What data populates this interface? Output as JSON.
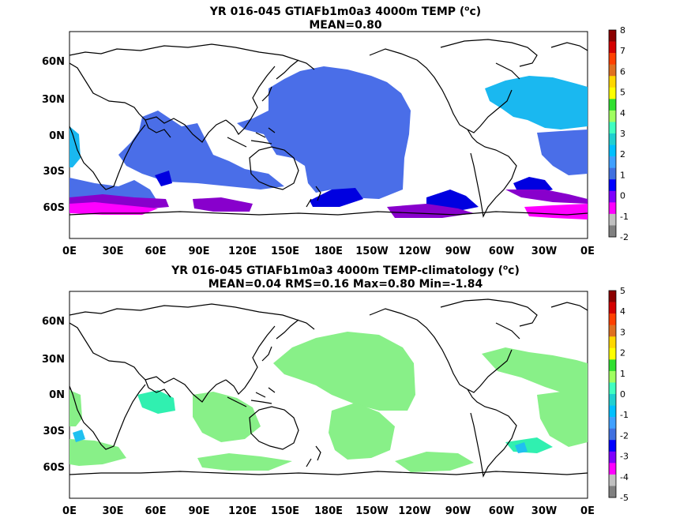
{
  "panels": [
    {
      "title_line1_prefix": "YR 016-045 GTIAFb1m0a3 4000m TEMP (",
      "title_unit_sup": "o",
      "title_unit_rest": "c)",
      "title_line2": "MEAN=0.80",
      "lat_labels": [
        "60N",
        "30N",
        "0N",
        "30S",
        "60S"
      ],
      "lon_labels": [
        "0E",
        "30E",
        "60E",
        "90E",
        "120E",
        "150E",
        "180E",
        "150W",
        "120W",
        "90W",
        "60W",
        "30W",
        "0E"
      ],
      "colorbar_labels": [
        "8",
        "7",
        "6",
        "5",
        "4",
        "3",
        "2",
        "1",
        "0",
        "-1",
        "-2"
      ],
      "colorbar_colors": [
        "#8b0000",
        "#d40000",
        "#ff4000",
        "#e07020",
        "#ffd700",
        "#ffff00",
        "#30e030",
        "#a0ff60",
        "#40ffc0",
        "#20d0d0",
        "#00c0ff",
        "#40a0ff",
        "#4070e0",
        "#0000ff",
        "#8000ff",
        "#ff00ff",
        "#c0c0c0",
        "#808080"
      ]
    },
    {
      "title_line1_prefix": "YR 016-045 GTIAFb1m0a3 4000m TEMP-climatology (",
      "title_unit_sup": "o",
      "title_unit_rest": "c)",
      "title_line2": "MEAN=0.04   RMS=0.16   Max=0.80   Min=-1.84",
      "lat_labels": [
        "60N",
        "30N",
        "0N",
        "30S",
        "60S"
      ],
      "lon_labels": [
        "0E",
        "30E",
        "60E",
        "90E",
        "120E",
        "150E",
        "180E",
        "150W",
        "120W",
        "90W",
        "60W",
        "30W",
        "0E"
      ],
      "colorbar_labels": [
        "5",
        "4",
        "3",
        "2",
        "1",
        "0",
        "-1",
        "-2",
        "-3",
        "-4",
        "-5"
      ],
      "colorbar_colors": [
        "#8b0000",
        "#d40000",
        "#ff4000",
        "#e07020",
        "#ffd700",
        "#ffff00",
        "#30e030",
        "#a0ff60",
        "#40ffc0",
        "#20d0d0",
        "#00c0ff",
        "#40a0ff",
        "#4070e0",
        "#0000ff",
        "#8000ff",
        "#ff00ff",
        "#c0c0c0",
        "#808080"
      ]
    }
  ],
  "fill_colors": {
    "panel1_main": "#4a6ee8",
    "panel1_atlantic": "#1ab8f0",
    "panel1_deep": "#0000e0",
    "panel1_purple": "#8800cc",
    "panel1_magenta": "#ff00ff",
    "panel2_main": "#88f088",
    "panel2_teal": "#30f0b0",
    "panel2_cyan": "#20c0f0"
  }
}
